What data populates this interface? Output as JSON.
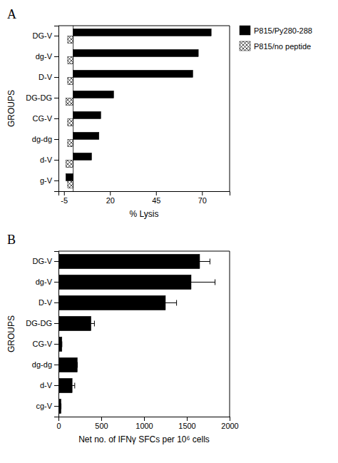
{
  "chart_data": [
    {
      "type": "bar",
      "orientation": "horizontal",
      "title": "A",
      "categories": [
        "DG-V",
        "dg-V",
        "D-V",
        "DG-DG",
        "CG-V",
        "dg-dg",
        "d-V",
        "g-V"
      ],
      "series": [
        {
          "name": "P815/Py280-288",
          "color": "#000000",
          "values": [
            75,
            68,
            65,
            22,
            15,
            14,
            10,
            -4
          ]
        },
        {
          "name": "P815/no peptide",
          "color": "#ffffff",
          "values": [
            -3,
            -3,
            -3,
            -4,
            -3,
            -3,
            -4,
            -3
          ]
        }
      ],
      "xlabel": "% Lysis",
      "ylabel": "GROUPS",
      "xlim": [
        -8,
        85
      ],
      "xticks": [
        -5,
        20,
        45,
        70
      ],
      "legend": "upper right",
      "grid": false
    },
    {
      "type": "bar",
      "orientation": "horizontal",
      "title": "B",
      "categories": [
        "DG-V",
        "dg-V",
        "D-V",
        "DG-DG",
        "CG-V",
        "dg-dg",
        "d-V",
        "cg-V"
      ],
      "values": [
        1650,
        1550,
        1250,
        380,
        40,
        220,
        160,
        30
      ],
      "errors": [
        120,
        280,
        130,
        40,
        0,
        0,
        30,
        0
      ],
      "color": "#000000",
      "xlabel": "Net no. of IFNγ SFCs per 10⁶ cells",
      "ylabel": "GROUPS",
      "xlim": [
        0,
        2000
      ],
      "xticks": [
        0,
        500,
        1000,
        1500,
        2000
      ],
      "grid": false
    }
  ]
}
